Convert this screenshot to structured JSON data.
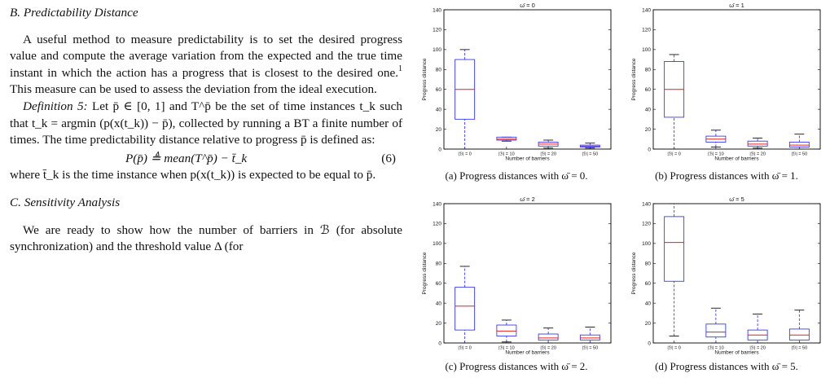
{
  "left": {
    "section_b": "B. Predictability Distance",
    "para1": "A useful method to measure predictability is to set the desired progress value and compute the average variation from the expected and the true time instant in which the action has a progress that is closest to the desired one.",
    "para1_footnote": "1",
    "para1_tail": " This measure can be used to assess the deviation from the ideal execution.",
    "def_label": "Definition 5:",
    "def_text": " Let p̄ ∈ [0, 1] and T^p̄ be the set of time instances t_k such that t_k = argmin (p(x(t_k)) − p̄), collected by running a BT a finite number of times. The time predictability distance relative to progress p̄ is defined as:",
    "equation": "P(p̄) ≜ mean(T^p̄) − t̄_k",
    "eq_number": "(6)",
    "after_eq": "where t̄_k is the time instance when p(x(t_k)) is expected to be equal to p̄.",
    "section_c": "C. Sensitivity Analysis",
    "para3": "We are ready to show how the number of barriers in ℬ (for absolute synchronization) and the threshold value Δ (for"
  },
  "chart_data": [
    {
      "type": "box",
      "title": "ω̄ = 0",
      "xlabel": "Number of barriers",
      "ylabel": "Progress distance",
      "ylim": [
        0,
        140
      ],
      "yticks": [
        0,
        20,
        40,
        60,
        80,
        100,
        120,
        140
      ],
      "categories": [
        "|ℬ| = 0",
        "|ℬ| = 10",
        "|ℬ| = 20",
        "|ℬ| = 50"
      ],
      "boxes": [
        {
          "whisker_low": 0,
          "q1": 30,
          "median": 60,
          "q3": 90,
          "whisker_high": 100
        },
        {
          "whisker_low": 8,
          "q1": 9,
          "median": 10,
          "q3": 12,
          "whisker_high": 12
        },
        {
          "whisker_low": 1,
          "q1": 3,
          "median": 5,
          "q3": 7,
          "whisker_high": 9
        },
        {
          "whisker_low": 1,
          "q1": 2,
          "median": 3,
          "q3": 4,
          "whisker_high": 6
        }
      ],
      "caption": "(a) Progress distances with ω̄ = 0."
    },
    {
      "type": "box",
      "title": "ω̄ = 1",
      "xlabel": "Number of barriers",
      "ylabel": "Progress distance",
      "ylim": [
        0,
        140
      ],
      "yticks": [
        0,
        20,
        40,
        60,
        80,
        100,
        120,
        140
      ],
      "categories": [
        "|ℬ| = 0",
        "|ℬ| = 10",
        "|ℬ| = 20",
        "|ℬ| = 50"
      ],
      "boxes": [
        {
          "whisker_low": 0,
          "q1": 32,
          "median": 60,
          "q3": 88,
          "whisker_high": 95
        },
        {
          "whisker_low": 2,
          "q1": 7,
          "median": 10,
          "q3": 13,
          "whisker_high": 19
        },
        {
          "whisker_low": 1,
          "q1": 3,
          "median": 5,
          "q3": 8,
          "whisker_high": 11
        },
        {
          "whisker_low": 0,
          "q1": 2,
          "median": 4,
          "q3": 7,
          "whisker_high": 15
        }
      ],
      "caption": "(b) Progress distances with ω̄ = 1."
    },
    {
      "type": "box",
      "title": "ω̄ = 2",
      "xlabel": "Number of barriers",
      "ylabel": "Progress distance",
      "ylim": [
        0,
        140
      ],
      "yticks": [
        0,
        20,
        40,
        60,
        80,
        100,
        120,
        140
      ],
      "categories": [
        "|ℬ| = 0",
        "|ℬ| = 10",
        "|ℬ| = 20",
        "|ℬ| = 50"
      ],
      "boxes": [
        {
          "whisker_low": 0,
          "q1": 13,
          "median": 37,
          "q3": 56,
          "whisker_high": 77
        },
        {
          "whisker_low": 1,
          "q1": 7,
          "median": 12,
          "q3": 18,
          "whisker_high": 23
        },
        {
          "whisker_low": 0,
          "q1": 3,
          "median": 5,
          "q3": 9,
          "whisker_high": 15
        },
        {
          "whisker_low": 0,
          "q1": 3,
          "median": 5,
          "q3": 8,
          "whisker_high": 16
        }
      ],
      "caption": "(c) Progress distances with ω̄ = 2."
    },
    {
      "type": "box",
      "title": "ω̄ = 5",
      "xlabel": "Number of barriers",
      "ylabel": "Progress distance",
      "ylim": [
        0,
        140
      ],
      "yticks": [
        0,
        20,
        40,
        60,
        80,
        100,
        120,
        140
      ],
      "categories": [
        "|ℬ| = 0",
        "|ℬ| = 10",
        "|ℬ| = 20",
        "|ℬ| = 50"
      ],
      "boxes": [
        {
          "whisker_low": 7,
          "q1": 62,
          "median": 101,
          "q3": 127,
          "whisker_high": 140
        },
        {
          "whisker_low": 0,
          "q1": 6,
          "median": 11,
          "q3": 19,
          "whisker_high": 35
        },
        {
          "whisker_low": 0,
          "q1": 3,
          "median": 8,
          "q3": 13,
          "whisker_high": 29
        },
        {
          "whisker_low": 0,
          "q1": 3,
          "median": 8,
          "q3": 14,
          "whisker_high": 33
        }
      ],
      "caption": "(d) Progress distances with ω̄ = 5."
    }
  ]
}
